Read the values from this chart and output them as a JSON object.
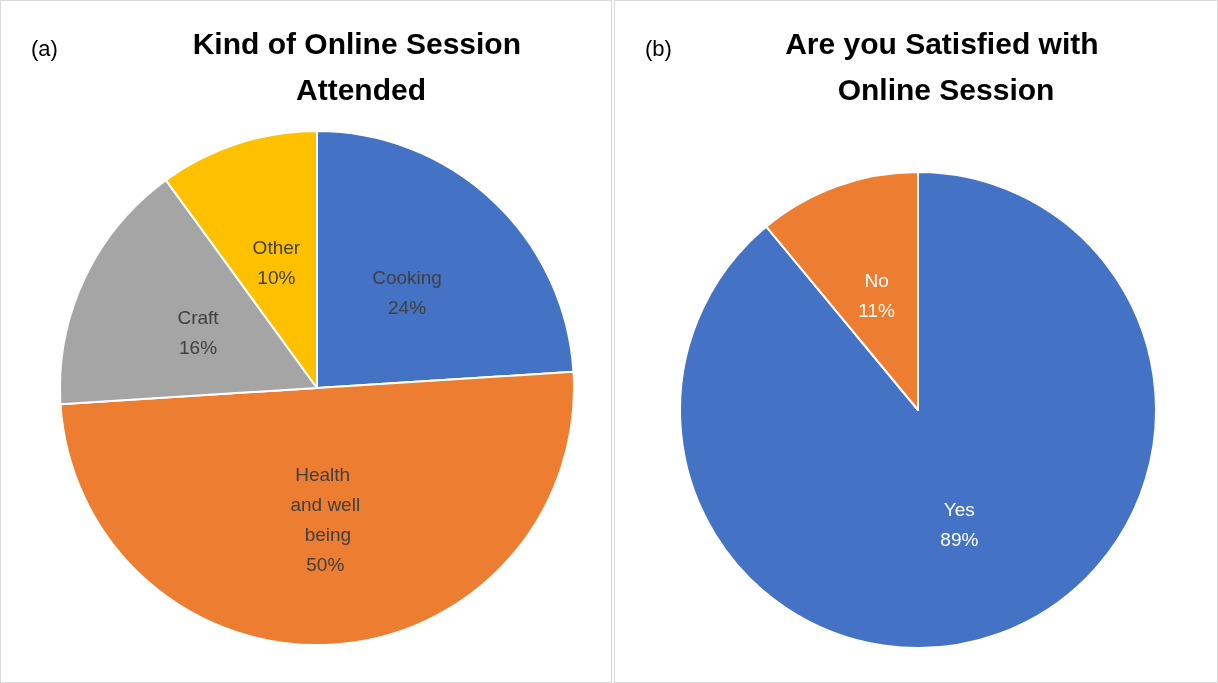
{
  "chart_data": [
    {
      "type": "pie",
      "title": "Kind of Online Session Attended",
      "annotations": [
        "(a)"
      ],
      "categories": [
        "Cooking",
        "Health and well being",
        "Craft",
        "Other"
      ],
      "values": [
        24,
        50,
        16,
        10
      ],
      "colors": [
        "#4472c4",
        "#ed7d31",
        "#a5a5a5",
        "#ffc000"
      ],
      "value_labels": [
        "24%",
        "50%",
        "16%",
        "10%"
      ],
      "legend": false
    },
    {
      "type": "pie",
      "title": "Are you Satisfied with Online Session",
      "annotations": [
        "(b)"
      ],
      "categories": [
        "Yes",
        "No"
      ],
      "values": [
        89,
        11
      ],
      "colors": [
        "#4472c4",
        "#ed7d31"
      ],
      "value_labels": [
        "89%",
        "11%"
      ],
      "legend": false
    }
  ]
}
